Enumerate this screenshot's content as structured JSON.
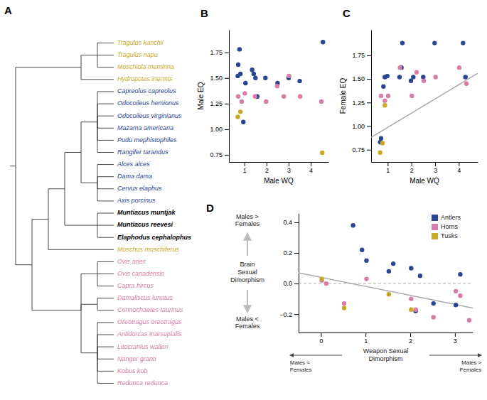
{
  "chart_data": [
    {
      "type": "tree",
      "title": "A",
      "categories": [
        "Tragulus kanchil",
        "Tragulus napu",
        "Moschiola meminna",
        "Hydropotes inermis",
        "Capreolus capreolus",
        "Odocoileus hemionus",
        "Odocoileus virginianus",
        "Mazama americana",
        "Pudu mephistophiles",
        "Rangifer tarandus",
        "Alces alces",
        "Dama dama",
        "Cervus elaphus",
        "Axis porcinus",
        "Muntiacus muntjak",
        "Muntiacus reevesi",
        "Elaphodus cephalophus",
        "Moschus moschiferus",
        "Ovis aries",
        "Ovis canadensis",
        "Capra hircus",
        "Damaliscus lunatus",
        "Connochaetes taurinus",
        "Oreotragus oreotragus",
        "Antidorcas marsupialis",
        "Litocranius walleri",
        "Nanger granti",
        "Kobus kob",
        "Redunca redunca"
      ],
      "colors": [
        "#C8A824",
        "#C8A824",
        "#C8A824",
        "#C8A824",
        "#2B4593",
        "#2B4593",
        "#2B4593",
        "#2B4593",
        "#2B4593",
        "#2B4593",
        "#2B4593",
        "#2B4593",
        "#2B4593",
        "#2B4593",
        "#000000",
        "#000000",
        "#000000",
        "#C8A824",
        "#D87DA7",
        "#D87DA7",
        "#D87DA7",
        "#D87DA7",
        "#D87DA7",
        "#D87DA7",
        "#D87DA7",
        "#D87DA7",
        "#D87DA7",
        "#D87DA7",
        "#D87DA7"
      ]
    },
    {
      "type": "scatter",
      "title": "B",
      "xlabel": "Male WQ",
      "ylabel": "Male EQ",
      "xlim": [
        0.3,
        4.8
      ],
      "ylim": [
        0.68,
        1.97
      ],
      "xticks": [
        1,
        2,
        3,
        4
      ],
      "yticks": [
        0.75,
        {
          "value": 1.0,
          "label": "1.00"
        },
        1.25,
        {
          "value": 1.5,
          "label": "1.50"
        },
        1.75
      ],
      "series": [
        {
          "color": "#2B4593",
          "x": [
            0.7,
            0.72,
            0.78,
            0.82,
            0.95,
            1.05,
            1.35,
            1.42,
            1.5,
            1.58,
            1.95,
            2.5,
            3.0,
            3.5,
            4.55
          ],
          "values": [
            1.52,
            1.63,
            1.78,
            1.54,
            1.07,
            1.45,
            1.58,
            1.54,
            1.5,
            1.32,
            1.5,
            1.45,
            1.5,
            1.47,
            1.85
          ]
        },
        {
          "color": "#D87DA7",
          "x": [
            0.72,
            0.88,
            1.02,
            1.48,
            1.98,
            2.48,
            2.78,
            3.02,
            3.52,
            4.48
          ],
          "values": [
            1.32,
            1.27,
            1.35,
            1.32,
            1.27,
            1.42,
            1.32,
            1.52,
            1.32,
            1.27
          ]
        },
        {
          "color": "#C8A824",
          "x": [
            0.7,
            0.82,
            4.52
          ],
          "values": [
            1.12,
            1.17,
            0.77
          ]
        }
      ]
    },
    {
      "type": "scatter",
      "title": "C",
      "xlabel": "Male WQ",
      "ylabel": "Female EQ",
      "xlim": [
        0.3,
        4.8
      ],
      "ylim": [
        0.62,
        2.02
      ],
      "xticks": [
        1,
        2,
        3,
        4
      ],
      "yticks": [
        0.75,
        {
          "value": 1.0,
          "label": "1.00"
        },
        1.25,
        {
          "value": 1.5,
          "label": "1.50"
        },
        1.75
      ],
      "series": [
        {
          "color": "#2B4593",
          "x": [
            0.68,
            0.72,
            0.82,
            0.88,
            0.98,
            1.5,
            1.58,
            1.62,
            1.98,
            2.08,
            2.5,
            2.98,
            4.18,
            4.28
          ],
          "values": [
            0.83,
            0.87,
            1.42,
            1.52,
            1.53,
            1.52,
            1.62,
            1.88,
            1.48,
            1.52,
            1.52,
            1.88,
            1.88,
            1.52
          ]
        },
        {
          "color": "#D87DA7",
          "x": [
            0.72,
            0.88,
            1.02,
            1.52,
            2.02,
            2.22,
            2.52,
            3.02,
            4.02,
            4.32
          ],
          "values": [
            1.32,
            1.27,
            1.32,
            1.62,
            1.32,
            1.57,
            1.48,
            1.52,
            1.62,
            1.45
          ]
        },
        {
          "color": "#C8A824",
          "x": [
            0.68,
            0.78,
            0.88
          ],
          "values": [
            0.72,
            0.82,
            1.22
          ]
        },
        {
          "type": "line",
          "color": "#aaaaaa",
          "x": [
            0.3,
            4.8
          ],
          "values": [
            0.88,
            1.56
          ]
        }
      ]
    },
    {
      "type": "scatter",
      "title": "D",
      "xlabel": "Weapon Sexual\nDimorphism",
      "ylabel": "Brain\nSexual\nDimorphism",
      "annotations": [
        "Males ≈\nFemales",
        "Males >\nFemales",
        "Males >\nFemales",
        "Males <\nFemales"
      ],
      "xlim": [
        -0.5,
        3.4
      ],
      "ylim": [
        -0.32,
        0.46
      ],
      "xticks": [
        0,
        1,
        2,
        3
      ],
      "yticks": [
        {
          "value": -0.2,
          "label": "−0.2"
        },
        {
          "value": 0.0,
          "label": "0.0"
        },
        0.2,
        0.4
      ],
      "hlines": [
        0
      ],
      "legend": "upper right",
      "series": [
        {
          "name": "Antlers",
          "color": "#2B4593",
          "x": [
            0.72,
            0.92,
            1.02,
            1.52,
            1.62,
            2.02,
            2.12,
            2.22,
            2.52,
            3.02,
            3.12
          ],
          "values": [
            0.38,
            0.22,
            0.15,
            0.08,
            0.13,
            0.1,
            -0.18,
            0.05,
            -0.13,
            -0.14,
            0.06
          ]
        },
        {
          "name": "Horns",
          "color": "#D87DA7",
          "x": [
            0.02,
            0.12,
            0.52,
            1.02,
            2.02,
            2.12,
            2.52,
            3.02,
            3.12,
            3.32
          ],
          "values": [
            0.02,
            0.0,
            -0.13,
            0.03,
            -0.1,
            -0.17,
            -0.22,
            -0.05,
            -0.08,
            -0.24
          ]
        },
        {
          "name": "Tusks",
          "color": "#C8A824",
          "x": [
            0.02,
            0.52,
            1.52,
            2.02
          ],
          "values": [
            0.03,
            -0.16,
            -0.07,
            -0.17
          ]
        },
        {
          "type": "line",
          "color": "#aaaaaa",
          "x": [
            -0.5,
            3.4
          ],
          "values": [
            0.07,
            -0.16
          ]
        }
      ]
    }
  ]
}
